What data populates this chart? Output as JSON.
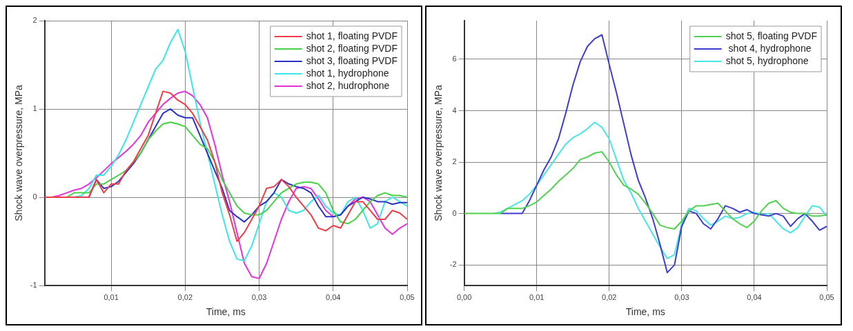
{
  "chart_data": [
    {
      "type": "line",
      "xlabel": "Time, ms",
      "ylabel": "Shock wave overpressure, MPa",
      "xlim": [
        0.001,
        0.05
      ],
      "ylim": [
        -1,
        2
      ],
      "xticks": [
        {
          "value": 0.01,
          "label": "0,01"
        },
        {
          "value": 0.02,
          "label": "0,02"
        },
        {
          "value": 0.03,
          "label": "0,03"
        },
        {
          "value": 0.04,
          "label": "0,04"
        },
        {
          "value": 0.05,
          "label": "0,05"
        }
      ],
      "yticks": [
        -1,
        0,
        1,
        2
      ],
      "grid": true,
      "legend": "top right",
      "marker": "none",
      "line_style": "solid",
      "x": [
        0.001,
        0.002,
        0.003,
        0.004,
        0.005,
        0.006,
        0.007,
        0.008,
        0.009,
        0.01,
        0.011,
        0.012,
        0.013,
        0.014,
        0.015,
        0.016,
        0.017,
        0.018,
        0.019,
        0.02,
        0.021,
        0.022,
        0.023,
        0.024,
        0.025,
        0.026,
        0.027,
        0.028,
        0.029,
        0.03,
        0.031,
        0.032,
        0.033,
        0.034,
        0.035,
        0.036,
        0.037,
        0.038,
        0.039,
        0.04,
        0.041,
        0.042,
        0.043,
        0.044,
        0.045,
        0.046,
        0.047,
        0.048,
        0.049,
        0.05
      ],
      "series": [
        {
          "name": "shot 1, floating PVDF",
          "color": "#f03c46",
          "values": [
            0,
            0,
            0,
            0,
            0,
            0,
            0,
            0.2,
            0.05,
            0.15,
            0.15,
            0.3,
            0.4,
            0.55,
            0.7,
            0.95,
            1.2,
            1.18,
            1.1,
            1.05,
            0.95,
            0.8,
            0.65,
            0.4,
            0.05,
            -0.2,
            -0.5,
            -0.4,
            -0.25,
            -0.1,
            0.1,
            0.12,
            0.2,
            0.12,
            0,
            -0.1,
            -0.2,
            -0.35,
            -0.38,
            -0.32,
            -0.35,
            -0.2,
            -0.05,
            -0.05,
            -0.15,
            -0.25,
            -0.25,
            -0.15,
            -0.18,
            -0.25
          ]
        },
        {
          "name": "shot 2, floating PVDF",
          "color": "#46d246",
          "values": [
            null,
            null,
            0,
            0,
            0.05,
            0.05,
            0.05,
            0.15,
            0.15,
            0.2,
            0.25,
            0.3,
            0.4,
            0.5,
            0.65,
            0.75,
            0.83,
            0.85,
            0.83,
            0.8,
            0.7,
            0.6,
            0.55,
            0.4,
            0.2,
            0.05,
            -0.1,
            -0.18,
            -0.2,
            -0.2,
            -0.15,
            -0.05,
            0.05,
            0.1,
            0.15,
            0.17,
            0.17,
            0.15,
            0.05,
            -0.15,
            -0.28,
            -0.3,
            -0.25,
            -0.15,
            -0.05,
            0.02,
            0.05,
            0.02,
            0.02,
            0
          ]
        },
        {
          "name": "shot 3, floating PVDF",
          "color": "#2832c8",
          "values": [
            null,
            null,
            null,
            null,
            null,
            null,
            0,
            0.2,
            0.1,
            0.12,
            0.18,
            0.28,
            0.38,
            0.5,
            0.65,
            0.8,
            0.95,
            1,
            0.93,
            0.9,
            0.9,
            0.7,
            0.5,
            0.3,
            0.1,
            -0.15,
            -0.22,
            -0.28,
            -0.2,
            -0.1,
            -0.05,
            0.05,
            0.2,
            0.15,
            0.12,
            0.1,
            0.05,
            -0.1,
            -0.22,
            -0.22,
            -0.2,
            -0.1,
            -0.05,
            0,
            -0.02,
            -0.05,
            -0.05,
            -0.08,
            -0.06,
            -0.06
          ]
        },
        {
          "name": "shot 1, hydrophone",
          "color": "#3ce6e6",
          "values": [
            null,
            null,
            null,
            0,
            0,
            0.02,
            0.1,
            0.25,
            0.25,
            0.35,
            0.48,
            0.65,
            0.85,
            1.05,
            1.25,
            1.45,
            1.55,
            1.75,
            1.9,
            1.65,
            1.25,
            0.85,
            0.5,
            0.15,
            -0.2,
            -0.5,
            -0.7,
            -0.72,
            -0.55,
            -0.3,
            -0.05,
            0.05,
            0,
            -0.15,
            -0.18,
            -0.15,
            -0.05,
            0.02,
            -0.1,
            -0.18,
            -0.2,
            -0.05,
            0,
            -0.15,
            -0.35,
            -0.3,
            -0.05,
            0,
            -0.05,
            -0.1
          ]
        },
        {
          "name": "shot 2, hudrophone",
          "color": "#e632dc",
          "values": [
            0,
            0,
            0.02,
            0.05,
            0.08,
            0.1,
            0.15,
            0.22,
            0.3,
            0.38,
            0.45,
            0.52,
            0.6,
            0.7,
            0.85,
            0.95,
            1.05,
            1.12,
            1.18,
            1.2,
            1.15,
            1.05,
            0.9,
            0.6,
            0.25,
            -0.05,
            -0.4,
            -0.75,
            -0.9,
            -0.92,
            -0.75,
            -0.5,
            -0.25,
            -0.05,
            0.1,
            0.12,
            0.1,
            -0.02,
            -0.15,
            -0.22,
            -0.2,
            -0.1,
            -0.02,
            0,
            -0.05,
            -0.2,
            -0.35,
            -0.42,
            -0.35,
            -0.3
          ]
        }
      ]
    },
    {
      "type": "line",
      "xlabel": "Time, ms",
      "ylabel": "Shock wave overpressure, MPa",
      "xlim": [
        0,
        0.05
      ],
      "ylim": [
        -2.8,
        7.5
      ],
      "xticks": [
        {
          "value": 0,
          "label": "0,00"
        },
        {
          "value": 0.01,
          "label": "0,01"
        },
        {
          "value": 0.02,
          "label": "0,02"
        },
        {
          "value": 0.03,
          "label": "0,03"
        },
        {
          "value": 0.04,
          "label": "0,04"
        },
        {
          "value": 0.05,
          "label": "0,05"
        }
      ],
      "yticks": [
        -2,
        0,
        2,
        4,
        6
      ],
      "grid": true,
      "legend": "top right",
      "marker": "none",
      "line_style": "solid",
      "x": [
        0,
        0.001,
        0.002,
        0.003,
        0.004,
        0.005,
        0.006,
        0.007,
        0.008,
        0.009,
        0.01,
        0.011,
        0.012,
        0.013,
        0.014,
        0.015,
        0.016,
        0.017,
        0.018,
        0.019,
        0.02,
        0.021,
        0.022,
        0.023,
        0.024,
        0.025,
        0.026,
        0.027,
        0.028,
        0.029,
        0.03,
        0.031,
        0.032,
        0.033,
        0.034,
        0.035,
        0.036,
        0.037,
        0.038,
        0.039,
        0.04,
        0.041,
        0.042,
        0.043,
        0.044,
        0.045,
        0.046,
        0.047,
        0.048,
        0.049,
        0.05
      ],
      "series": [
        {
          "name": "shot 5, floating PVDF",
          "color": "#50d250",
          "values": [
            0,
            0,
            0,
            0,
            0,
            0,
            0.2,
            0.2,
            0.2,
            0.3,
            0.45,
            0.7,
            0.95,
            1.25,
            1.5,
            1.75,
            2.1,
            2.2,
            2.35,
            2.4,
            2,
            1.5,
            1.1,
            0.95,
            0.75,
            0.4,
            0,
            -0.45,
            -0.55,
            -0.6,
            -0.3,
            0.1,
            0.3,
            0.3,
            0.35,
            0.4,
            0.1,
            -0.2,
            -0.4,
            -0.55,
            -0.3,
            0.1,
            0.4,
            0.5,
            0.2,
            0.05,
            0,
            0,
            -0.1,
            -0.1,
            -0.05
          ]
        },
        {
          "name": " shot 4, hydrophone",
          "color": "#3c3cd2",
          "values": [
            null,
            null,
            null,
            null,
            null,
            0,
            0,
            0,
            0,
            0.5,
            1.1,
            1.7,
            2.2,
            2.9,
            3.9,
            5,
            5.9,
            6.5,
            6.8,
            6.95,
            5.8,
            4.7,
            3.5,
            2.3,
            1.3,
            0.6,
            -0.2,
            -1.2,
            -2.3,
            -2,
            -0.5,
            0.1,
            0,
            -0.4,
            -0.6,
            -0.2,
            0.3,
            0.2,
            0.05,
            0.15,
            0,
            -0.05,
            -0.1,
            0,
            -0.1,
            -0.5,
            -0.2,
            0,
            -0.3,
            -0.65,
            -0.5
          ]
        },
        {
          "name": "shot 5, hydrophone",
          "color": "#46e6e6",
          "values": [
            null,
            null,
            null,
            null,
            0,
            0.05,
            0.2,
            0.35,
            0.5,
            0.75,
            1.1,
            1.5,
            1.9,
            2.3,
            2.7,
            2.95,
            3.1,
            3.3,
            3.55,
            3.35,
            2.9,
            2.1,
            1.3,
            0.8,
            0.2,
            -0.3,
            -0.8,
            -1.3,
            -1.75,
            -1.6,
            -0.4,
            0.2,
            0.1,
            -0.2,
            -0.45,
            -0.3,
            -0.1,
            -0.2,
            -0.15,
            0,
            0.05,
            -0.05,
            0,
            -0.3,
            -0.6,
            -0.75,
            -0.55,
            -0.1,
            0.3,
            0.25,
            -0.1
          ]
        }
      ]
    }
  ]
}
